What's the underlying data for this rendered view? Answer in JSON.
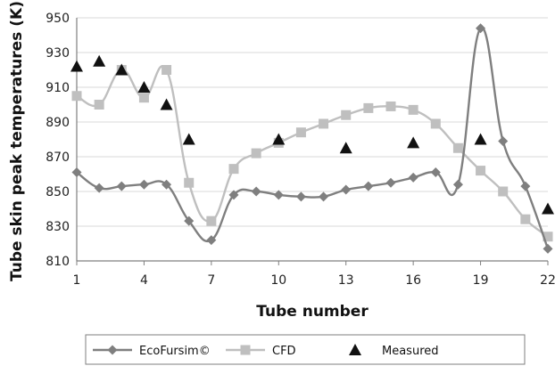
{
  "chart_data": {
    "type": "line",
    "xlabel": "Tube number",
    "ylabel": "Tube skin peak temperatures (K)",
    "xlim": [
      1,
      22
    ],
    "ylim": [
      810,
      950
    ],
    "xticks": [
      1,
      4,
      7,
      10,
      13,
      16,
      19,
      22
    ],
    "yticks": [
      810,
      830,
      850,
      870,
      890,
      910,
      930,
      950
    ],
    "grid": "horizontal",
    "legend_position": "bottom",
    "series": [
      {
        "name": "EcoFursim©",
        "style": "smooth-line-diamond",
        "color": "#7f7f7f",
        "x": [
          1,
          2,
          3,
          4,
          5,
          6,
          7,
          8,
          9,
          10,
          11,
          12,
          13,
          14,
          15,
          16,
          17,
          18,
          19,
          20,
          21,
          22
        ],
        "y": [
          861,
          852,
          853,
          854,
          854,
          833,
          822,
          848,
          850,
          848,
          847,
          847,
          851,
          853,
          855,
          858,
          861,
          854,
          944,
          879,
          853,
          817
        ]
      },
      {
        "name": "CFD",
        "style": "smooth-line-square",
        "color": "#bfbfbf",
        "x": [
          1,
          2,
          3,
          4,
          5,
          6,
          7,
          8,
          9,
          10,
          11,
          12,
          13,
          14,
          15,
          16,
          17,
          18,
          19,
          20,
          21,
          22
        ],
        "y": [
          905,
          900,
          920,
          904,
          920,
          855,
          833,
          863,
          872,
          878,
          884,
          889,
          894,
          898,
          899,
          897,
          889,
          875,
          862,
          850,
          834,
          824
        ]
      },
      {
        "name": "Measured",
        "style": "marker-triangle",
        "color": "#111111",
        "x": [
          1,
          2,
          3,
          4,
          5,
          6,
          10,
          13,
          16,
          19,
          22
        ],
        "y": [
          922,
          925,
          920,
          910,
          900,
          880,
          880,
          875,
          878,
          880,
          840
        ]
      }
    ]
  }
}
